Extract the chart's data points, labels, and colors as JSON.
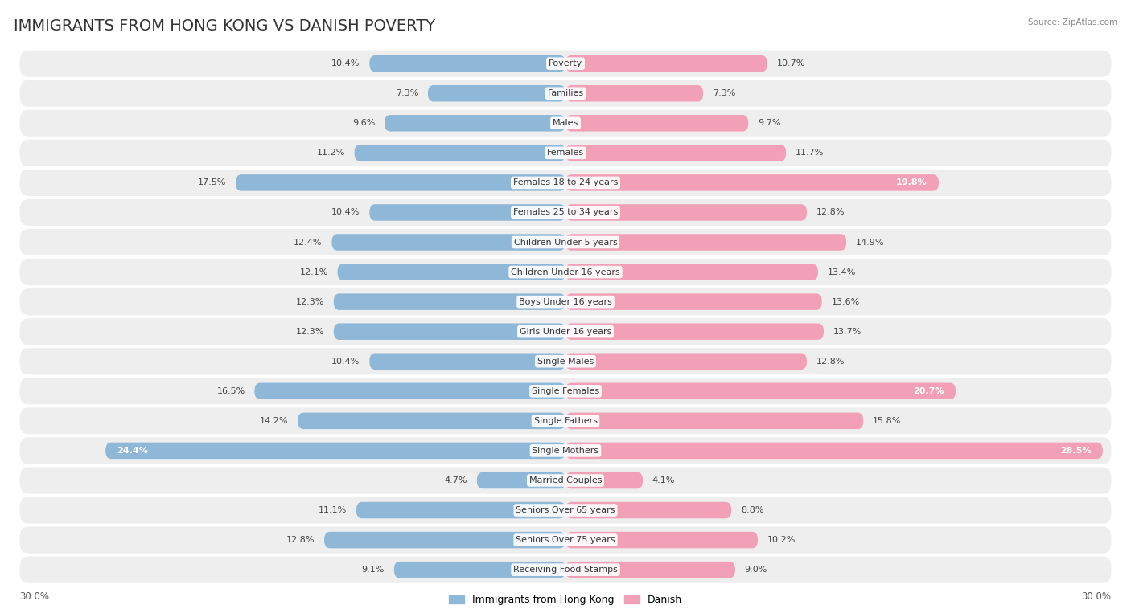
{
  "title": "IMMIGRANTS FROM HONG KONG VS DANISH POVERTY",
  "source": "Source: ZipAtlas.com",
  "categories": [
    "Poverty",
    "Families",
    "Males",
    "Females",
    "Females 18 to 24 years",
    "Females 25 to 34 years",
    "Children Under 5 years",
    "Children Under 16 years",
    "Boys Under 16 years",
    "Girls Under 16 years",
    "Single Males",
    "Single Females",
    "Single Fathers",
    "Single Mothers",
    "Married Couples",
    "Seniors Over 65 years",
    "Seniors Over 75 years",
    "Receiving Food Stamps"
  ],
  "left_values": [
    10.4,
    7.3,
    9.6,
    11.2,
    17.5,
    10.4,
    12.4,
    12.1,
    12.3,
    12.3,
    10.4,
    16.5,
    14.2,
    24.4,
    4.7,
    11.1,
    12.8,
    9.1
  ],
  "right_values": [
    10.7,
    7.3,
    9.7,
    11.7,
    19.8,
    12.8,
    14.9,
    13.4,
    13.6,
    13.7,
    12.8,
    20.7,
    15.8,
    28.5,
    4.1,
    8.8,
    10.2,
    9.0
  ],
  "left_color": "#8fb8d8",
  "right_color": "#f2a0b8",
  "max_val": 30.0,
  "legend_left": "Immigrants from Hong Kong",
  "legend_right": "Danish",
  "background_color": "#ffffff",
  "row_bg_color": "#eeeeee",
  "title_fontsize": 14,
  "label_fontsize": 8.0,
  "value_fontsize": 8.0,
  "axis_label_fontsize": 8.5
}
